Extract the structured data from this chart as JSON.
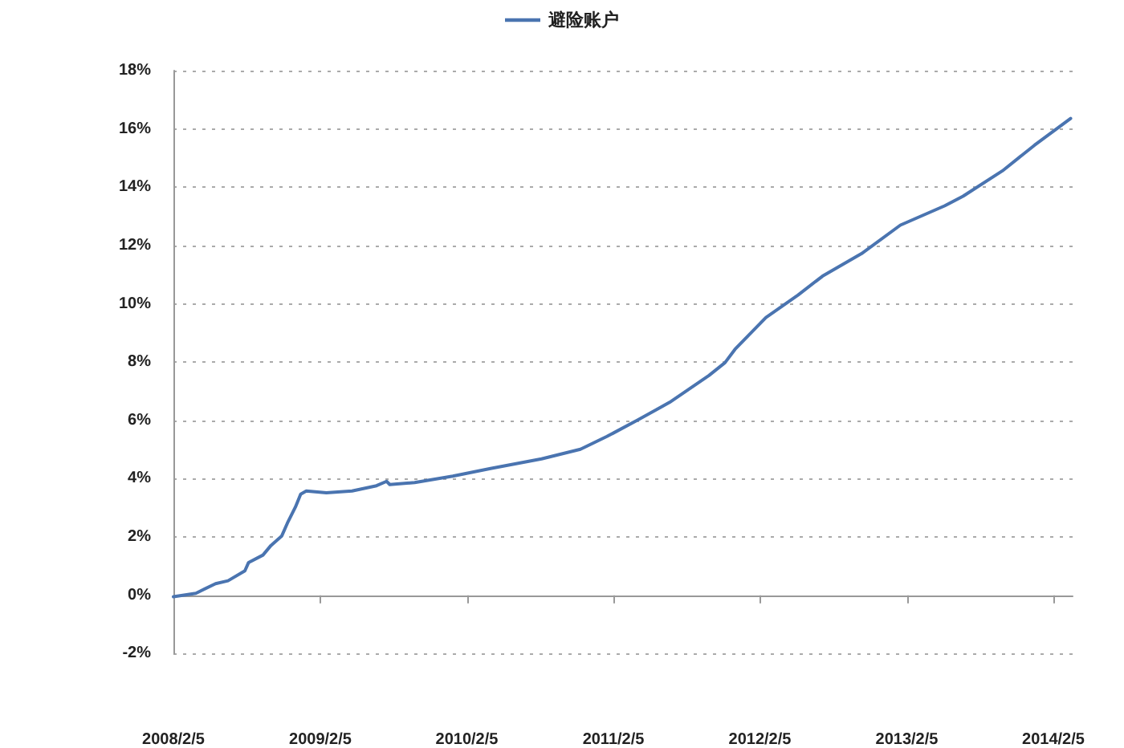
{
  "chart_data": {
    "type": "line",
    "series": [
      {
        "name": "避险账户",
        "color": "#4a74b0",
        "x": [
          "2008-02-05",
          "2008-04-01",
          "2008-05-20",
          "2008-06-20",
          "2008-08-01",
          "2008-08-10",
          "2008-09-15",
          "2008-10-05",
          "2008-11-01",
          "2008-11-15",
          "2008-12-05",
          "2008-12-18",
          "2009-01-01",
          "2009-02-20",
          "2009-04-25",
          "2009-06-25",
          "2009-07-20",
          "2009-07-28",
          "2009-09-28",
          "2010-01-01",
          "2010-04-05",
          "2010-08-10",
          "2010-11-15",
          "2011-01-20",
          "2011-04-05",
          "2011-06-25",
          "2011-10-01",
          "2011-11-10",
          "2011-12-05",
          "2012-02-20",
          "2012-05-10",
          "2012-07-10",
          "2012-10-15",
          "2013-01-20",
          "2013-05-10",
          "2013-06-25",
          "2013-10-01",
          "2013-12-20",
          "2014-03-20"
        ],
        "values": [
          -0.05,
          0.07,
          0.4,
          0.5,
          0.84,
          1.12,
          1.38,
          1.71,
          2.04,
          2.48,
          3.03,
          3.47,
          3.58,
          3.52,
          3.58,
          3.76,
          3.91,
          3.8,
          3.87,
          4.09,
          4.35,
          4.68,
          5.01,
          5.45,
          6.0,
          6.62,
          7.54,
          7.98,
          8.44,
          9.53,
          10.3,
          10.95,
          11.72,
          12.7,
          13.36,
          13.69,
          14.56,
          15.44,
          16.36
        ]
      }
    ],
    "xlim": [
      "2008-02-05",
      "2014-03-25"
    ],
    "xticks": [
      {
        "value": "2008-02-05",
        "label": "2008/2/5"
      },
      {
        "value": "2009-02-05",
        "label": "2009/2/5"
      },
      {
        "value": "2010-02-05",
        "label": "2010/2/5"
      },
      {
        "value": "2011-02-05",
        "label": "2011/2/5"
      },
      {
        "value": "2012-02-05",
        "label": "2012/2/5"
      },
      {
        "value": "2013-02-05",
        "label": "2013/2/5"
      },
      {
        "value": "2014-02-05",
        "label": "2014/2/5"
      }
    ],
    "ylim": [
      -2,
      18
    ],
    "yticks": [
      {
        "value": -2,
        "label": "-2%"
      },
      {
        "value": 0,
        "label": "0%"
      },
      {
        "value": 2,
        "label": "2%"
      },
      {
        "value": 4,
        "label": "4%"
      },
      {
        "value": 6,
        "label": "6%"
      },
      {
        "value": 8,
        "label": "8%"
      },
      {
        "value": 10,
        "label": "10%"
      },
      {
        "value": 12,
        "label": "12%"
      },
      {
        "value": 14,
        "label": "14%"
      },
      {
        "value": 16,
        "label": "16%"
      },
      {
        "value": 18,
        "label": "18%"
      }
    ],
    "grid": "y",
    "legend": "top",
    "marker": "none",
    "line_style": "solid"
  }
}
